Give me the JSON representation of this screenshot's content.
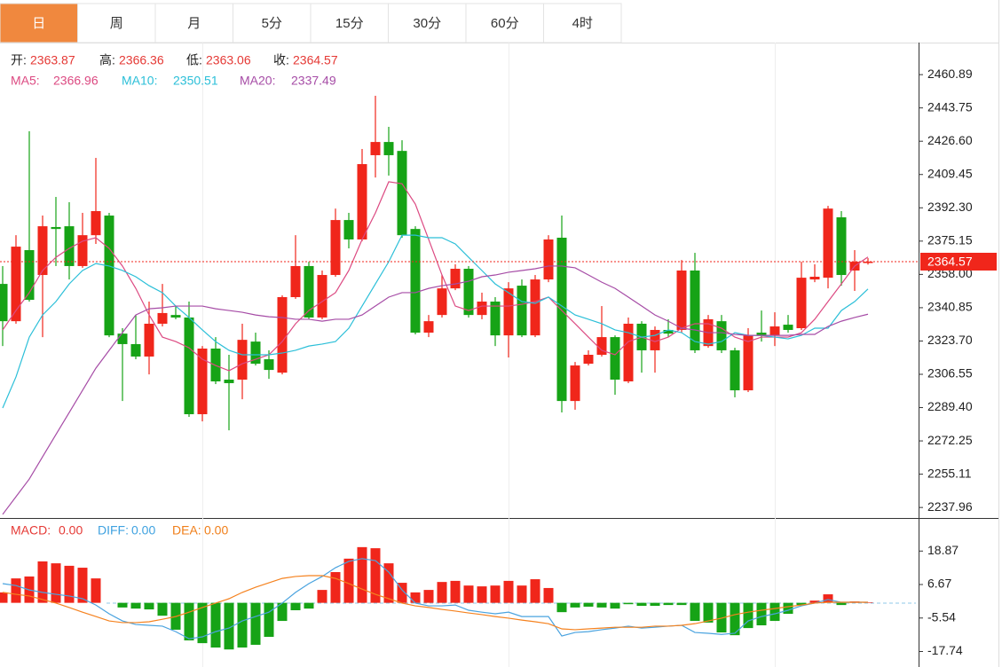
{
  "tabs": [
    {
      "label": "日",
      "active": true
    },
    {
      "label": "周",
      "active": false
    },
    {
      "label": "月",
      "active": false
    },
    {
      "label": "5分",
      "active": false
    },
    {
      "label": "15分",
      "active": false
    },
    {
      "label": "30分",
      "active": false
    },
    {
      "label": "60分",
      "active": false
    },
    {
      "label": "4时",
      "active": false
    }
  ],
  "chart_data": [
    {
      "type": "candlestick",
      "header_labels": [
        "开:",
        "高:",
        "低:",
        "收:"
      ],
      "up_color": "#f0261b",
      "down_color": "#16a316",
      "ylim": [
        2233.0,
        2477.4
      ],
      "yticks": [
        2460.89,
        2443.75,
        {
          "value": 2426.6,
          "label": "2426.60"
        },
        2409.45,
        {
          "value": 2392.3,
          "label": "2392.30"
        },
        2375.15,
        {
          "value": 2358.0,
          "label": "2358.00"
        },
        2340.85,
        {
          "value": 2323.7,
          "label": "2323.70"
        },
        2306.55,
        {
          "value": 2289.4,
          "label": "2289.40"
        },
        2272.25,
        2255.11,
        2237.96
      ],
      "open": [
        2353.1,
        2333.9,
        2370.5,
        2357.7,
        2382.4,
        2382.8,
        2362.3,
        2378.2,
        2388.3,
        2327.5,
        2322.1,
        2315.7,
        2332.6,
        2337.1,
        2335.8,
        2286.0,
        2319.8,
        2303.8,
        2303.8,
        2323.4,
        2314.3,
        2307.4,
        2346.3,
        2362.3,
        2335.8,
        2357.7,
        2386.0,
        2376.0,
        2419.4,
        2426.2,
        2421.6,
        2381.4,
        2328.0,
        2337.1,
        2350.8,
        2360.9,
        2337.1,
        2344.0,
        2326.6,
        2352.2,
        2326.6,
        2355.4,
        2376.9,
        2292.8,
        2312.0,
        2316.6,
        2325.7,
        2302.9,
        2332.6,
        2318.9,
        2329.4,
        2329.4,
        2360.0,
        2321.1,
        2333.9,
        2318.9,
        2298.3,
        2328.0,
        2326.6,
        2332.1,
        2330.3,
        2355.4,
        2356.3,
        2387.4,
        2360.0,
        2363.87
      ],
      "high": [
        2362.3,
        2378.2,
        2431.7,
        2388.3,
        2397.9,
        2395.2,
        2389.7,
        2418.0,
        2389.7,
        2330.3,
        2337.1,
        2344.0,
        2353.1,
        2341.7,
        2344.0,
        2321.1,
        2325.7,
        2316.6,
        2332.6,
        2328.0,
        2318.9,
        2347.2,
        2378.2,
        2364.5,
        2360.0,
        2391.9,
        2389.7,
        2422.6,
        2450.0,
        2434.0,
        2427.1,
        2382.8,
        2337.1,
        2357.7,
        2363.2,
        2362.3,
        2348.6,
        2346.3,
        2354.0,
        2355.4,
        2357.7,
        2378.2,
        2388.3,
        2312.9,
        2318.9,
        2341.7,
        2326.6,
        2335.8,
        2333.9,
        2331.2,
        2334.9,
        2365.4,
        2369.1,
        2337.1,
        2337.1,
        2320.2,
        2330.3,
        2339.4,
        2338.5,
        2337.1,
        2364.5,
        2363.2,
        2393.3,
        2390.6,
        2370.5,
        2366.36
      ],
      "low": [
        2321.1,
        2332.6,
        2344.0,
        2325.7,
        2362.3,
        2355.4,
        2361.4,
        2373.7,
        2325.7,
        2292.8,
        2314.3,
        2306.5,
        2331.2,
        2334.9,
        2284.6,
        2282.3,
        2301.5,
        2277.7,
        2293.7,
        2311.1,
        2304.2,
        2306.5,
        2345.4,
        2334.9,
        2334.9,
        2356.8,
        2371.4,
        2375.1,
        2407.9,
        2408.9,
        2376.9,
        2327.1,
        2325.7,
        2335.8,
        2349.9,
        2335.8,
        2334.9,
        2321.1,
        2315.2,
        2325.7,
        2325.7,
        2354.0,
        2286.9,
        2288.3,
        2311.1,
        2315.7,
        2296.0,
        2302.0,
        2307.4,
        2307.4,
        2325.7,
        2328.0,
        2317.5,
        2320.2,
        2317.5,
        2294.7,
        2297.4,
        2323.4,
        2321.1,
        2328.0,
        2329.4,
        2354.0,
        2350.8,
        2352.2,
        2349.5,
        2363.06
      ],
      "close": [
        2333.9,
        2372.3,
        2344.9,
        2382.8,
        2381.4,
        2362.3,
        2378.2,
        2390.6,
        2326.6,
        2322.1,
        2315.7,
        2332.6,
        2338.1,
        2335.8,
        2286.0,
        2319.8,
        2302.9,
        2302.0,
        2324.3,
        2312.0,
        2308.8,
        2346.3,
        2362.3,
        2335.8,
        2357.7,
        2386.0,
        2376.0,
        2414.8,
        2426.2,
        2419.4,
        2378.2,
        2328.0,
        2333.9,
        2350.8,
        2360.9,
        2337.1,
        2344.0,
        2326.6,
        2350.8,
        2326.6,
        2355.4,
        2376.0,
        2292.8,
        2311.1,
        2316.6,
        2325.7,
        2303.8,
        2332.6,
        2318.9,
        2329.4,
        2327.5,
        2360.0,
        2318.9,
        2334.9,
        2318.9,
        2298.3,
        2326.6,
        2326.6,
        2331.2,
        2329.4,
        2356.3,
        2356.8,
        2391.9,
        2357.7,
        2364.5,
        2364.57
      ],
      "series": [
        {
          "name": "MA5:",
          "color": "#dc4a82",
          "values": [
            2329.4,
            2339.4,
            2348.6,
            2360.0,
            2366.8,
            2371.4,
            2375.1,
            2376.9,
            2371.4,
            2362.3,
            2350.8,
            2337.1,
            2325.7,
            2323.4,
            2320.2,
            2314.3,
            2311.1,
            2308.4,
            2312.0,
            2314.3,
            2316.6,
            2323.4,
            2332.6,
            2339.4,
            2344.0,
            2348.6,
            2360.0,
            2376.0,
            2389.7,
            2405.7,
            2404.7,
            2394.2,
            2376.0,
            2357.7,
            2341.7,
            2339.4,
            2341.7,
            2341.7,
            2341.7,
            2342.6,
            2344.0,
            2346.3,
            2339.4,
            2332.6,
            2325.7,
            2318.9,
            2316.6,
            2323.4,
            2325.7,
            2323.4,
            2325.7,
            2330.3,
            2332.6,
            2332.6,
            2330.3,
            2325.7,
            2323.4,
            2325.7,
            2325.7,
            2325.7,
            2328.0,
            2334.9,
            2344.0,
            2353.1,
            2362.3,
            2366.96
          ]
        },
        {
          "name": "MA10:",
          "color": "#2bbfd8",
          "values": [
            2289.2,
            2305.2,
            2325.7,
            2337.1,
            2344.0,
            2353.1,
            2360.0,
            2363.6,
            2362.3,
            2360.0,
            2356.8,
            2352.2,
            2348.6,
            2341.7,
            2335.8,
            2329.4,
            2323.4,
            2318.9,
            2316.6,
            2316.6,
            2316.6,
            2317.5,
            2318.9,
            2321.1,
            2322.1,
            2323.4,
            2330.3,
            2341.7,
            2353.1,
            2364.5,
            2378.2,
            2378.2,
            2376.9,
            2376.9,
            2373.7,
            2366.8,
            2360.0,
            2353.1,
            2348.6,
            2344.0,
            2343.1,
            2346.3,
            2341.7,
            2337.1,
            2334.9,
            2332.6,
            2329.4,
            2328.0,
            2325.7,
            2326.6,
            2329.4,
            2328.0,
            2323.4,
            2322.1,
            2323.4,
            2328.0,
            2326.6,
            2326.6,
            2325.7,
            2324.8,
            2326.6,
            2330.3,
            2330.3,
            2339.4,
            2344.0,
            2350.51
          ]
        },
        {
          "name": "MA20:",
          "color": "#a64ca6",
          "values": [
            2234.4,
            2243.5,
            2252.6,
            2264.1,
            2275.5,
            2286.9,
            2298.3,
            2309.7,
            2318.9,
            2328.0,
            2337.1,
            2340.3,
            2340.8,
            2341.7,
            2341.7,
            2341.7,
            2340.3,
            2339.4,
            2338.5,
            2337.1,
            2336.2,
            2335.8,
            2334.9,
            2334.9,
            2333.9,
            2334.9,
            2334.9,
            2337.1,
            2341.7,
            2346.3,
            2348.6,
            2348.6,
            2350.8,
            2352.2,
            2353.1,
            2354.5,
            2356.8,
            2357.7,
            2359.1,
            2360.0,
            2360.9,
            2362.3,
            2362.3,
            2361.4,
            2357.7,
            2354.0,
            2350.8,
            2346.3,
            2341.7,
            2337.1,
            2333.9,
            2330.3,
            2329.4,
            2328.0,
            2328.0,
            2327.1,
            2326.6,
            2326.6,
            2326.6,
            2326.6,
            2327.1,
            2327.1,
            2331.2,
            2333.9,
            2335.8,
            2337.49
          ]
        }
      ]
    },
    {
      "type": "macd",
      "up_color": "#f0261b",
      "down_color": "#16a316",
      "ylim": [
        -22.1,
        30.6
      ],
      "yticks": [
        18.87,
        6.67,
        -5.54,
        -17.74
      ],
      "legend": [
        {
          "label": "MACD:",
          "value": 0,
          "value_label": "0.00",
          "color": "#e53935"
        },
        {
          "label": "DIFF:",
          "value": 0,
          "value_label": "0.00",
          "color": "#3fa2e0"
        },
        {
          "label": "DEA:",
          "value": 0,
          "value_label": "0.00",
          "color": "#f07f1a"
        }
      ],
      "values": [
        3.8,
        8.9,
        9.6,
        15.1,
        14.4,
        13.5,
        12.8,
        8.9,
        0,
        -1.7,
        -2.1,
        -2.4,
        -4.7,
        -9.8,
        -13.7,
        -14.7,
        -16.3,
        -17.0,
        -16.3,
        -15.3,
        -12.4,
        -6.6,
        -2.7,
        -2.1,
        4.7,
        11.2,
        16.1,
        20.3,
        19.9,
        14.4,
        7.3,
        3.8,
        4.7,
        7.6,
        8.0,
        6.3,
        6.0,
        6.3,
        8.0,
        6.3,
        8.6,
        5.4,
        -3.4,
        -1.7,
        -1.4,
        -1.7,
        -2.1,
        -0.5,
        -1.1,
        -1.1,
        -0.8,
        -0.8,
        -6.6,
        -7.2,
        -10.8,
        -11.8,
        -9.2,
        -8.2,
        -6.6,
        -4.0,
        -0.8,
        0.8,
        3.1,
        -0.8,
        0.5,
        0.2
      ],
      "series": [
        {
          "name": "DIFF",
          "color": "#4aa3df",
          "values": [
            7.0,
            6.3,
            4.7,
            3.8,
            3.1,
            2.5,
            1.5,
            -0.8,
            -4.0,
            -6.6,
            -7.9,
            -8.2,
            -8.5,
            -10.5,
            -13.1,
            -12.4,
            -10.5,
            -9.2,
            -6.6,
            -5.0,
            -3.4,
            -0.1,
            3.8,
            7.0,
            9.6,
            12.8,
            15.1,
            16.1,
            15.4,
            11.2,
            4.7,
            -0.1,
            -1.1,
            -1.1,
            -0.8,
            -2.7,
            -3.4,
            -4.0,
            -3.4,
            -5.0,
            -5.0,
            -5.0,
            -12.1,
            -10.8,
            -10.5,
            -9.8,
            -9.2,
            -8.5,
            -9.2,
            -8.9,
            -8.5,
            -8.2,
            -10.8,
            -11.1,
            -11.5,
            -11.1,
            -6.6,
            -5.0,
            -4.0,
            -2.7,
            -1.1,
            -0.1,
            1.2,
            0.2,
            0.2,
            0.2
          ]
        },
        {
          "name": "DEA",
          "color": "#f5821f",
          "values": [
            3.8,
            3.1,
            2.5,
            1.2,
            -0.1,
            -1.7,
            -3.4,
            -5.0,
            -6.6,
            -7.2,
            -7.2,
            -6.9,
            -6.0,
            -5.0,
            -3.4,
            -1.7,
            -0.1,
            1.5,
            3.8,
            5.7,
            7.3,
            8.9,
            9.6,
            9.9,
            9.9,
            8.9,
            7.0,
            5.0,
            3.1,
            1.5,
            -0.1,
            -1.1,
            -1.7,
            -2.4,
            -3.0,
            -3.7,
            -4.3,
            -5.0,
            -5.6,
            -6.3,
            -6.9,
            -7.6,
            -9.5,
            -9.8,
            -9.5,
            -9.2,
            -8.9,
            -8.9,
            -8.9,
            -8.5,
            -8.5,
            -8.2,
            -7.6,
            -6.6,
            -5.6,
            -4.3,
            -3.4,
            -2.7,
            -2.1,
            -1.4,
            -0.8,
            -0.1,
            0.2,
            0.2,
            0.2,
            0.2
          ]
        }
      ]
    }
  ]
}
